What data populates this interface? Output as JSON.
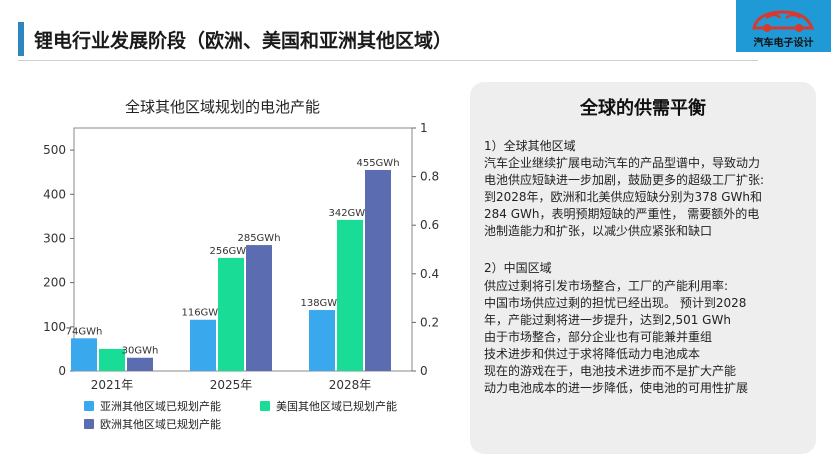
{
  "page": {
    "title": "锂电行业发展阶段（欧洲、美国和亚洲其他区域）"
  },
  "logo": {
    "text": "汽车电子设计",
    "bg_color": "#1f9ad6",
    "car_color": "#d63a2f",
    "icon": "car-logo-icon"
  },
  "chart_data": {
    "type": "bar",
    "title": "全球其他区域规划的电池产能",
    "categories": [
      "2021年",
      "2025年",
      "2028年"
    ],
    "series": [
      {
        "name": "亚洲其他区域已规划产能",
        "color": "#3aa8ec",
        "values": [
          74,
          116,
          138
        ],
        "labels": [
          "74GWh",
          "116GWh",
          "138GWh"
        ]
      },
      {
        "name": "美国其他区域已规划产能",
        "color": "#19dc96",
        "values": [
          50,
          256,
          342
        ],
        "labels": [
          "",
          "256GWh",
          "342GWh"
        ]
      },
      {
        "name": "欧洲其他区域已规划产能",
        "color": "#5b6cb1",
        "values": [
          30,
          285,
          455
        ],
        "labels": [
          "30GWh",
          "285GWh",
          "455GWh"
        ]
      }
    ],
    "ylim": [
      0,
      550
    ],
    "yticks": [
      "0",
      "100",
      "200",
      "300",
      "400",
      "500"
    ],
    "y2lim": [
      0,
      1
    ],
    "y2ticks": [
      "0",
      "0.2",
      "0.4",
      "0.6",
      "0.8",
      "1"
    ],
    "grid": false,
    "legend_position": "bottom"
  },
  "panel": {
    "title": "全球的供需平衡",
    "section1": {
      "heading": "1）全球其他区域",
      "lines": [
        "汽车企业继续扩展电动汽车的产品型谱中，导致动力",
        "电池供应短缺进一步加剧，鼓励更多的超级工厂扩张:",
        "到2028年，欧洲和北美供应短缺分别为378 GWh和",
        "284 GWh，表明预期短缺的严重性， 需要额外的电",
        "池制造能力和扩张，以减少供应紧张和缺口"
      ]
    },
    "section2": {
      "heading": "2）中国区域",
      "lines": [
        "供应过剩将引发市场整合，工厂的产能利用率:",
        "中国市场供应过剩的担忧已经出现。 预计到2028",
        "年，产能过剩将进一步提升，达到2,501 GWh",
        "由于市场整合，部分企业也有可能兼并重组",
        "技术进步和供过于求将降低动力电池成本",
        "现在的游戏在于，电池技术进步而不是扩大产能",
        "动力电池成本的进一步降低，使电池的可用性扩展"
      ]
    }
  }
}
